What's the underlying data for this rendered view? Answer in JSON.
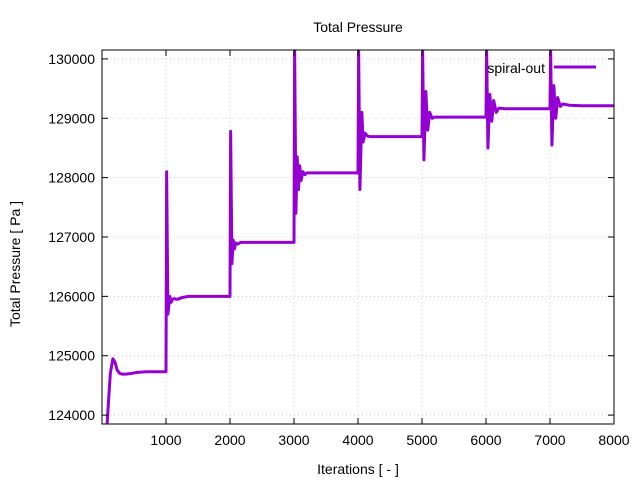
{
  "chart_data": {
    "type": "line",
    "title": "Total Pressure",
    "xlabel": "Iterations [ - ]",
    "ylabel": "Total Pressure [ Pa ]",
    "xlim": [
      0,
      8000
    ],
    "ylim": [
      123850,
      130150
    ],
    "xticks": [
      1000,
      2000,
      3000,
      4000,
      5000,
      6000,
      7000,
      8000
    ],
    "yticks": [
      124000,
      125000,
      126000,
      127000,
      128000,
      129000,
      130000
    ],
    "xtick_labels": [
      "1000",
      "2000",
      "3000",
      "4000",
      "5000",
      "6000",
      "7000",
      "8000"
    ],
    "ytick_labels": [
      "124000",
      "125000",
      "126000",
      "127000",
      "128000",
      "129000",
      "130000"
    ],
    "grid": true,
    "legend_position": "top-right",
    "series": [
      {
        "name": "spiral-out",
        "color": "#9400d3",
        "x": [
          80,
          100,
          130,
          170,
          200,
          240,
          280,
          320,
          380,
          450,
          550,
          700,
          850,
          1000,
          1000,
          1010,
          1030,
          1060,
          1080,
          1100,
          1130,
          1180,
          1250,
          1350,
          1500,
          1700,
          1900,
          2000,
          2000,
          2010,
          2030,
          2050,
          2070,
          2090,
          2120,
          2170,
          2250,
          2400,
          2600,
          2800,
          3000,
          3000,
          3010,
          3030,
          3050,
          3070,
          3090,
          3110,
          3140,
          3170,
          3200,
          3300,
          3500,
          3700,
          3900,
          4000,
          4000,
          4010,
          4030,
          4060,
          4080,
          4110,
          4150,
          4200,
          4300,
          4500,
          4700,
          4900,
          5000,
          5000,
          5010,
          5030,
          5060,
          5090,
          5120,
          5160,
          5200,
          5300,
          5500,
          5700,
          5900,
          6000,
          6000,
          6010,
          6030,
          6060,
          6090,
          6120,
          6160,
          6200,
          6300,
          6500,
          6700,
          6900,
          7000,
          7000,
          7010,
          7030,
          7060,
          7090,
          7120,
          7160,
          7200,
          7300,
          7500,
          7700,
          7900,
          8000
        ],
        "values": [
          123850,
          124200,
          124700,
          124950,
          124900,
          124750,
          124700,
          124690,
          124690,
          124700,
          124720,
          124730,
          124730,
          124730,
          124730,
          128100,
          125700,
          126000,
          125900,
          125950,
          125960,
          125950,
          125980,
          126000,
          126000,
          126000,
          126000,
          126000,
          126000,
          128780,
          126550,
          126950,
          126800,
          126900,
          126880,
          126910,
          126910,
          126910,
          126910,
          126910,
          126910,
          126910,
          130150,
          127400,
          128350,
          127800,
          128200,
          127950,
          128100,
          128050,
          128080,
          128080,
          128080,
          128080,
          128080,
          128080,
          128080,
          130150,
          127800,
          129100,
          128600,
          128750,
          128700,
          128690,
          128690,
          128690,
          128690,
          128690,
          128690,
          128690,
          130150,
          128300,
          129450,
          128800,
          129100,
          129000,
          129020,
          129020,
          129020,
          129020,
          129020,
          129020,
          129020,
          130150,
          128500,
          129400,
          128950,
          129300,
          129100,
          129170,
          129160,
          129160,
          129160,
          129160,
          129160,
          129160,
          130150,
          128550,
          129550,
          129000,
          129350,
          129200,
          129240,
          129220,
          129210,
          129210,
          129210,
          129210
        ]
      }
    ]
  }
}
